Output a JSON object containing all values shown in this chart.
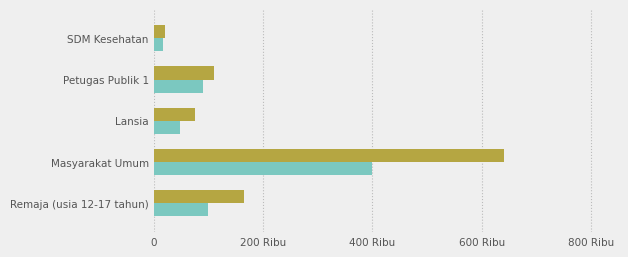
{
  "categories": [
    "Remaja (usia 12-17 tahun)",
    "Masyarakat Umum",
    "Lansia",
    "Petugas Publik 1",
    "SDM Kesehatan"
  ],
  "target_values": [
    165000,
    640000,
    75000,
    110000,
    20000
  ],
  "capaian_values": [
    100000,
    400000,
    48000,
    90000,
    17000
  ],
  "color_target": "#b5a642",
  "color_capaian": "#7bc8c0",
  "background_color": "#efefef",
  "xlim": [
    0,
    850000
  ],
  "xticks": [
    0,
    200000,
    400000,
    600000,
    800000
  ],
  "xtick_labels": [
    "0",
    "200 Ribu",
    "400 Ribu",
    "600 Ribu",
    "800 Ribu"
  ],
  "bar_height": 0.32,
  "fontsize_labels": 7.5,
  "fontsize_ticks": 7.5
}
